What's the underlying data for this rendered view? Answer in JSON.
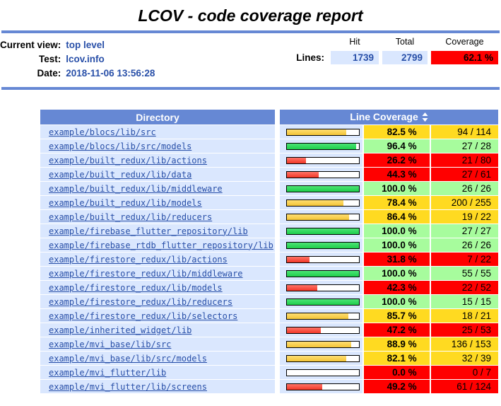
{
  "title": "LCOV - code coverage report",
  "header": {
    "labels": {
      "current_view": "Current view:",
      "test": "Test:",
      "date": "Date:",
      "lines": "Lines:"
    },
    "values": {
      "current_view": "top level",
      "test": "lcov.info",
      "date": "2018-11-06 13:56:28"
    },
    "columns": {
      "hit": "Hit",
      "total": "Total",
      "coverage": "Coverage"
    },
    "lines": {
      "hit": "1739",
      "total": "2799",
      "coverage": "62.1 %"
    }
  },
  "table": {
    "directory_header": "Directory",
    "coverage_header": "Line Coverage",
    "sort_icon": "sort-updown-icon",
    "rows": [
      {
        "dir": "example/blocs/lib/src",
        "percent": 82.5,
        "percent_label": "82.5 %",
        "ratio": "94 / 114",
        "level": "med"
      },
      {
        "dir": "example/blocs/lib/src/models",
        "percent": 96.4,
        "percent_label": "96.4 %",
        "ratio": "27 / 28",
        "level": "hi"
      },
      {
        "dir": "example/built_redux/lib/actions",
        "percent": 26.2,
        "percent_label": "26.2 %",
        "ratio": "21 / 80",
        "level": "lo"
      },
      {
        "dir": "example/built_redux/lib/data",
        "percent": 44.3,
        "percent_label": "44.3 %",
        "ratio": "27 / 61",
        "level": "lo"
      },
      {
        "dir": "example/built_redux/lib/middleware",
        "percent": 100.0,
        "percent_label": "100.0 %",
        "ratio": "26 / 26",
        "level": "hi"
      },
      {
        "dir": "example/built_redux/lib/models",
        "percent": 78.4,
        "percent_label": "78.4 %",
        "ratio": "200 / 255",
        "level": "med"
      },
      {
        "dir": "example/built_redux/lib/reducers",
        "percent": 86.4,
        "percent_label": "86.4 %",
        "ratio": "19 / 22",
        "level": "med"
      },
      {
        "dir": "example/firebase_flutter_repository/lib",
        "percent": 100.0,
        "percent_label": "100.0 %",
        "ratio": "27 / 27",
        "level": "hi"
      },
      {
        "dir": "example/firebase_rtdb_flutter_repository/lib",
        "percent": 100.0,
        "percent_label": "100.0 %",
        "ratio": "26 / 26",
        "level": "hi"
      },
      {
        "dir": "example/firestore_redux/lib/actions",
        "percent": 31.8,
        "percent_label": "31.8 %",
        "ratio": "7 / 22",
        "level": "lo"
      },
      {
        "dir": "example/firestore_redux/lib/middleware",
        "percent": 100.0,
        "percent_label": "100.0 %",
        "ratio": "55 / 55",
        "level": "hi"
      },
      {
        "dir": "example/firestore_redux/lib/models",
        "percent": 42.3,
        "percent_label": "42.3 %",
        "ratio": "22 / 52",
        "level": "lo"
      },
      {
        "dir": "example/firestore_redux/lib/reducers",
        "percent": 100.0,
        "percent_label": "100.0 %",
        "ratio": "15 / 15",
        "level": "hi"
      },
      {
        "dir": "example/firestore_redux/lib/selectors",
        "percent": 85.7,
        "percent_label": "85.7 %",
        "ratio": "18 / 21",
        "level": "med"
      },
      {
        "dir": "example/inherited_widget/lib",
        "percent": 47.2,
        "percent_label": "47.2 %",
        "ratio": "25 / 53",
        "level": "lo"
      },
      {
        "dir": "example/mvi_base/lib/src",
        "percent": 88.9,
        "percent_label": "88.9 %",
        "ratio": "136 / 153",
        "level": "med"
      },
      {
        "dir": "example/mvi_base/lib/src/models",
        "percent": 82.1,
        "percent_label": "82.1 %",
        "ratio": "32 / 39",
        "level": "med"
      },
      {
        "dir": "example/mvi_flutter/lib",
        "percent": 0.0,
        "percent_label": "0.0 %",
        "ratio": "0 / 7",
        "level": "lo"
      },
      {
        "dir": "example/mvi_flutter/lib/screens",
        "percent": 49.2,
        "percent_label": "49.2 %",
        "ratio": "61 / 124",
        "level": "lo"
      }
    ]
  },
  "colors": {
    "header_blue": "#6688D4",
    "row_bg_blue": "#DAE7FE",
    "link_blue": "#284FA8",
    "hi_bg": "#A7FC9D",
    "med_bg": "#FFDA21",
    "lo_bg": "#FF0000",
    "bar_hi": "#2BD955",
    "bar_med": "#F6C93F",
    "bar_lo": "#F9473A"
  }
}
